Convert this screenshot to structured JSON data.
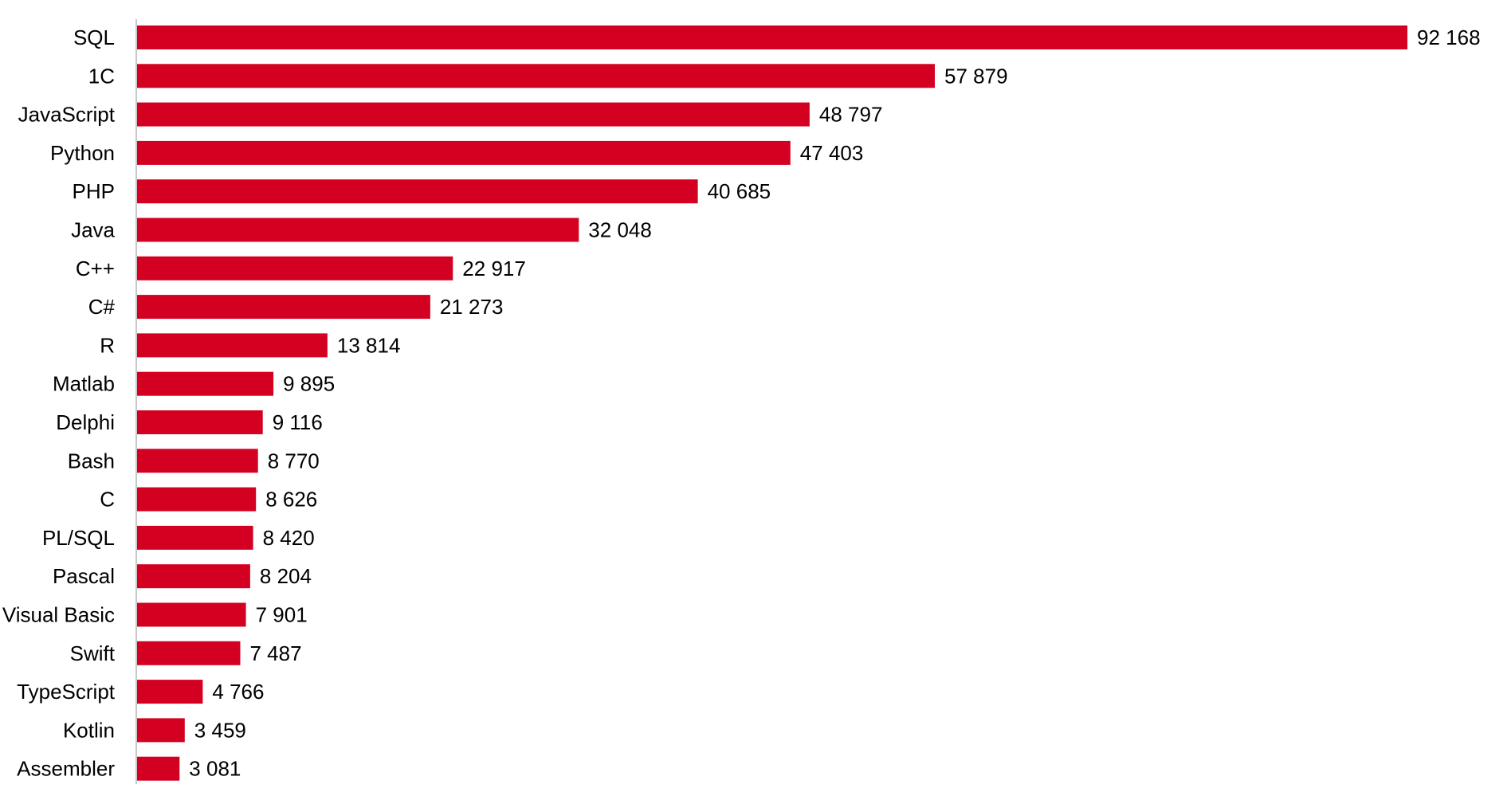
{
  "chart_data": {
    "type": "bar",
    "orientation": "horizontal",
    "categories": [
      "SQL",
      "1C",
      "JavaScript",
      "Python",
      "PHP",
      "Java",
      "C++",
      "C#",
      "R",
      "Matlab",
      "Delphi",
      "Bash",
      "C",
      "PL/SQL",
      "Pascal",
      "Visual Basic",
      "Swift",
      "TypeScript",
      "Kotlin",
      "Assembler"
    ],
    "values": [
      92168,
      57879,
      48797,
      47403,
      40685,
      32048,
      22917,
      21273,
      13814,
      9895,
      9116,
      8770,
      8626,
      8420,
      8204,
      7901,
      7487,
      4766,
      3459,
      3081
    ],
    "value_labels": [
      "92 168",
      "57 879",
      "48 797",
      "47 403",
      "40 685",
      "32 048",
      "22 917",
      "21 273",
      "13 814",
      "9 895",
      "9 116",
      "8 770",
      "8 626",
      "8 420",
      "8 204",
      "7 901",
      "7 487",
      "4 766",
      "3 459",
      "3 081"
    ],
    "title": "",
    "xlabel": "",
    "ylabel": "",
    "xlim": [
      0,
      92168
    ],
    "grid": false,
    "legend": "none",
    "bar_color": "#d40022",
    "axis_color": "#c8c8c8"
  }
}
